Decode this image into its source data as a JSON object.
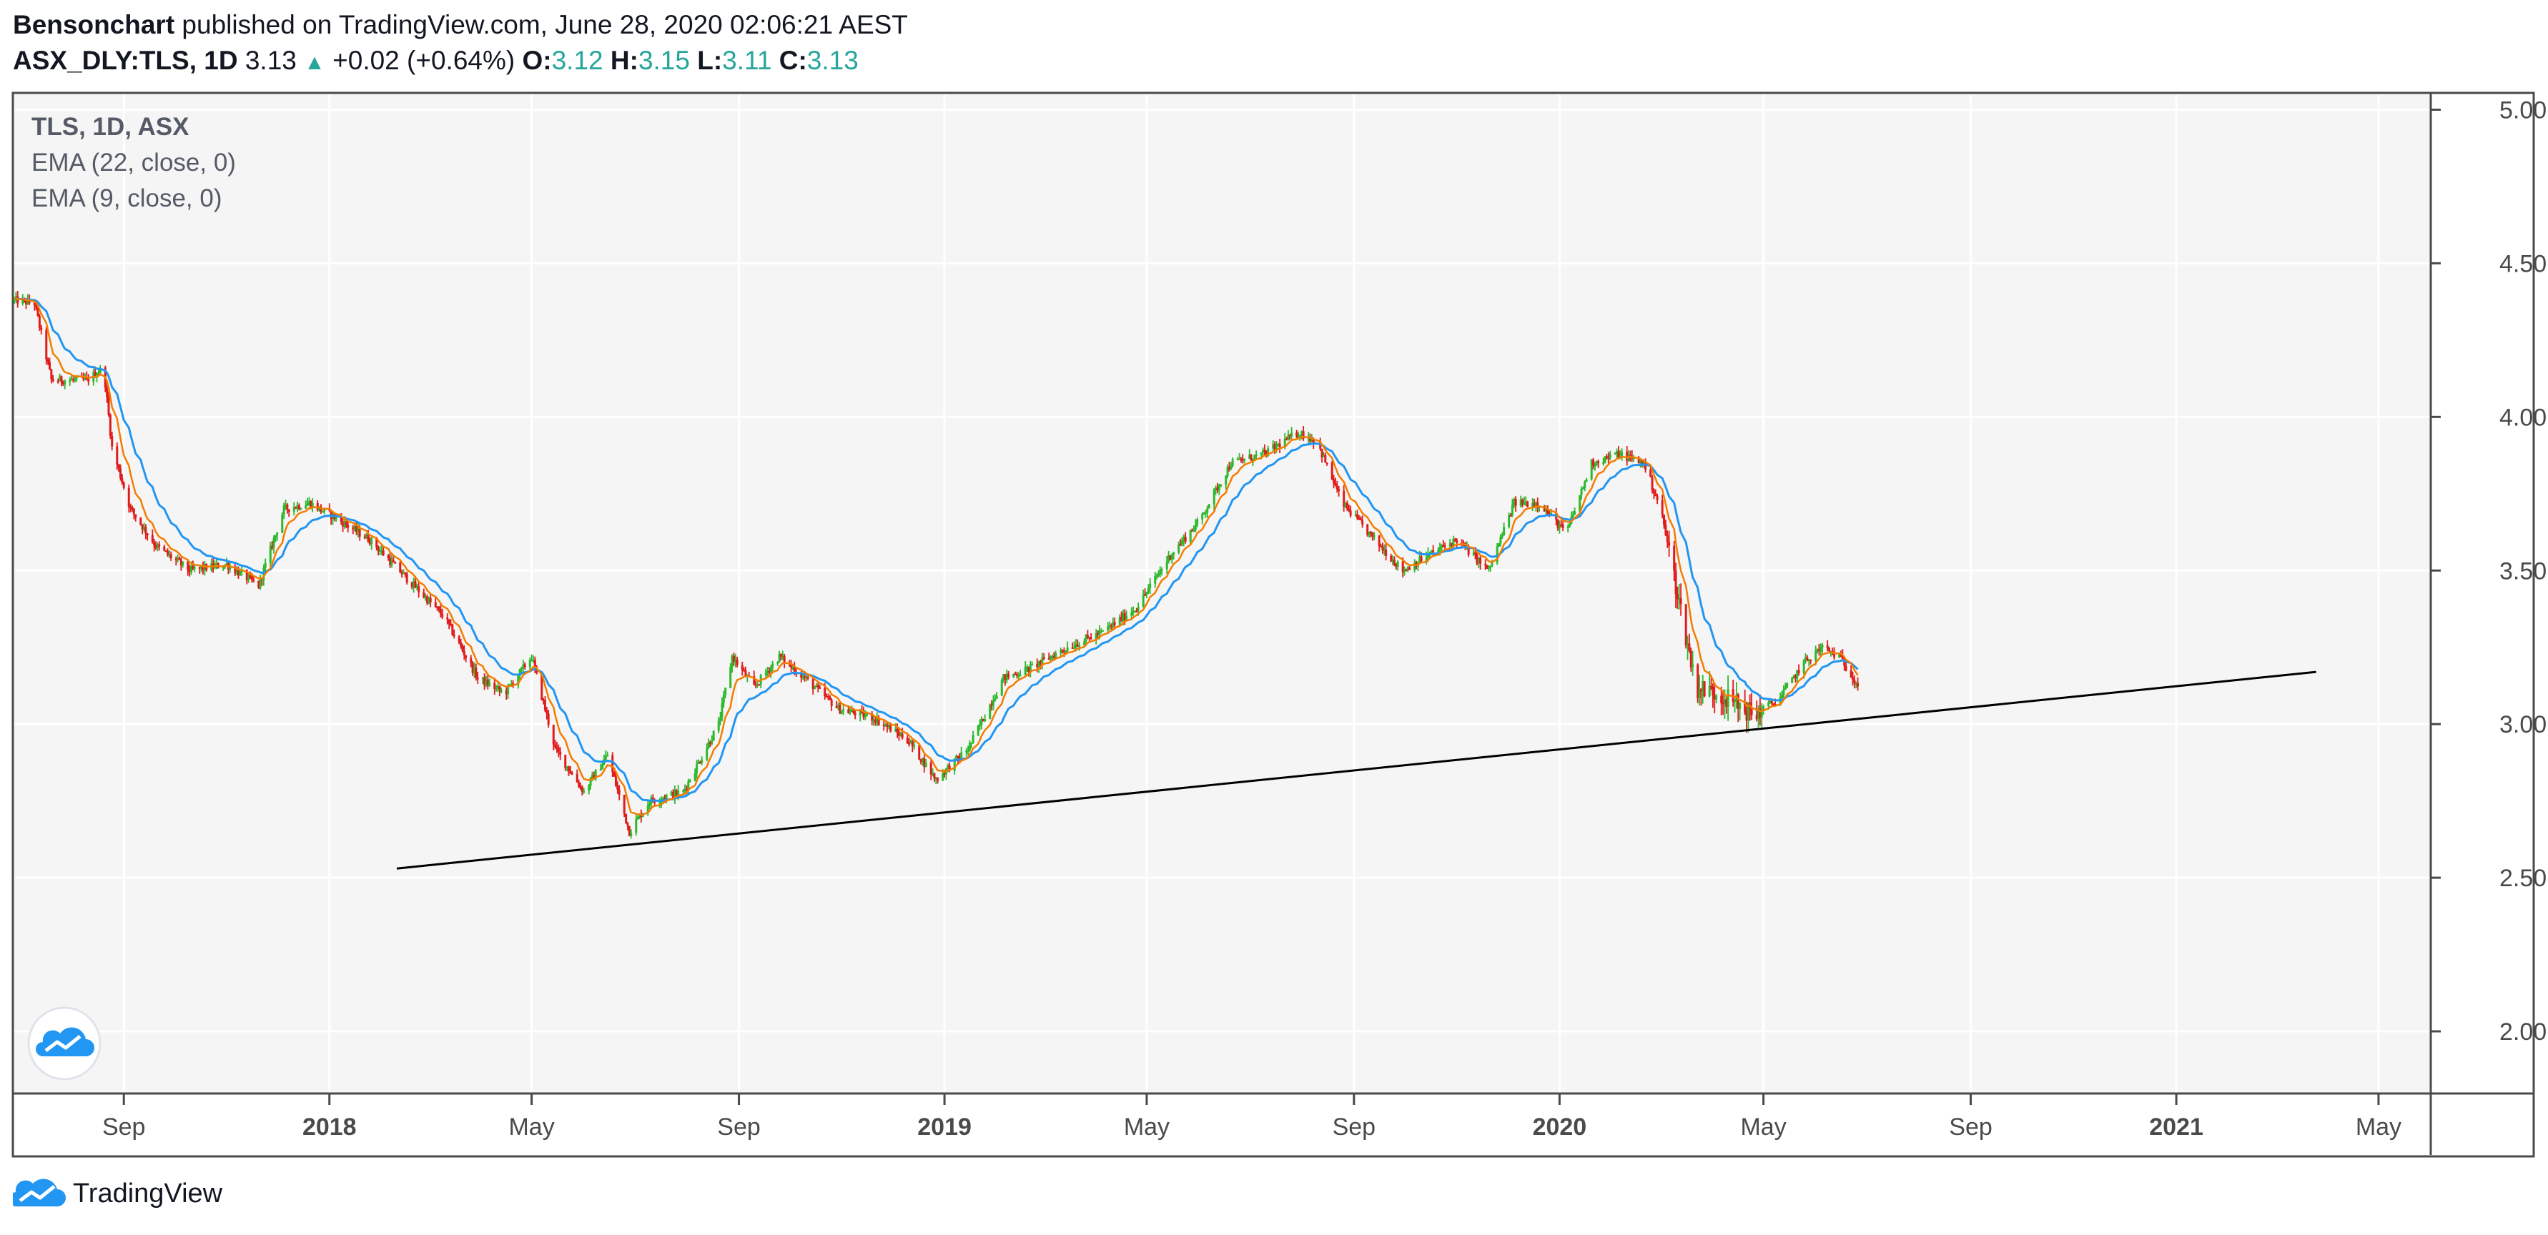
{
  "header": {
    "author": "Bensonchart",
    "published_text": " published on TradingView.com, June 28, 2020 02:06:21 AEST",
    "symbol": "ASX_DLY:TLS, 1D",
    "last": "3.13",
    "arrow": "▲",
    "change": "+0.02 (+0.64%)",
    "o_label": "O:",
    "o_value": "3.12",
    "h_label": "H:",
    "h_value": "3.15",
    "l_label": "L:",
    "l_value": "3.11",
    "c_label": "C:",
    "c_value": "3.13"
  },
  "legend": {
    "symbol": "TLS, 1D, ASX",
    "ema1": "EMA (22, close, 0)",
    "ema2": "EMA (9, close, 0)"
  },
  "footer": {
    "brand": "TradingView"
  },
  "colors": {
    "up": "#2db82d",
    "down": "#e01b1b",
    "ema22": "#2196f3",
    "ema9": "#f57c00",
    "trendline": "#000000",
    "background": "#f5f5f5",
    "grid": "#ffffff",
    "teal": "#26a69a"
  },
  "icons": {
    "logo_badge": "tradingview-cloud-icon",
    "footer_logo": "tradingview-cloud-icon"
  },
  "chart_data": {
    "type": "candlestick",
    "title": "TLS, 1D, ASX",
    "y_axis_side": "right",
    "ylim": [
      1.8,
      5.05
    ],
    "y_ticks": [
      "5.00",
      "4.50",
      "4.00",
      "3.50",
      "3.00",
      "2.50",
      "2.00"
    ],
    "x_range": [
      "2017-06-28",
      "2021-06-01"
    ],
    "x_ticks": [
      {
        "date": "2017-09-01",
        "label": "Sep",
        "bold": false
      },
      {
        "date": "2018-01-01",
        "label": "2018",
        "bold": true
      },
      {
        "date": "2018-05-01",
        "label": "May",
        "bold": false
      },
      {
        "date": "2018-09-01",
        "label": "Sep",
        "bold": false
      },
      {
        "date": "2019-01-01",
        "label": "2019",
        "bold": true
      },
      {
        "date": "2019-05-01",
        "label": "May",
        "bold": false
      },
      {
        "date": "2019-09-01",
        "label": "Sep",
        "bold": false
      },
      {
        "date": "2020-01-01",
        "label": "2020",
        "bold": true
      },
      {
        "date": "2020-05-01",
        "label": "May",
        "bold": false
      },
      {
        "date": "2020-09-01",
        "label": "Sep",
        "bold": false
      },
      {
        "date": "2021-01-01",
        "label": "2021",
        "bold": true
      },
      {
        "date": "2021-05-01",
        "label": "May",
        "bold": false
      }
    ],
    "price_path": [
      [
        "2017-06-28",
        4.38
      ],
      [
        "2017-07-10",
        4.37
      ],
      [
        "2017-07-20",
        4.12
      ],
      [
        "2017-08-10",
        4.12
      ],
      [
        "2017-08-20",
        4.16
      ],
      [
        "2017-08-25",
        3.9
      ],
      [
        "2017-09-05",
        3.7
      ],
      [
        "2017-09-20",
        3.58
      ],
      [
        "2017-10-10",
        3.5
      ],
      [
        "2017-11-01",
        3.52
      ],
      [
        "2017-11-20",
        3.45
      ],
      [
        "2017-12-05",
        3.7
      ],
      [
        "2017-12-20",
        3.72
      ],
      [
        "2018-01-05",
        3.67
      ],
      [
        "2018-01-25",
        3.6
      ],
      [
        "2018-02-15",
        3.48
      ],
      [
        "2018-03-10",
        3.35
      ],
      [
        "2018-03-30",
        3.15
      ],
      [
        "2018-04-15",
        3.1
      ],
      [
        "2018-05-01",
        3.22
      ],
      [
        "2018-05-15",
        2.92
      ],
      [
        "2018-06-01",
        2.78
      ],
      [
        "2018-06-15",
        2.9
      ],
      [
        "2018-06-28",
        2.65
      ],
      [
        "2018-07-10",
        2.75
      ],
      [
        "2018-07-30",
        2.78
      ],
      [
        "2018-08-20",
        3.0
      ],
      [
        "2018-08-28",
        3.22
      ],
      [
        "2018-09-10",
        3.12
      ],
      [
        "2018-09-25",
        3.22
      ],
      [
        "2018-10-10",
        3.15
      ],
      [
        "2018-10-30",
        3.05
      ],
      [
        "2018-11-20",
        3.02
      ],
      [
        "2018-12-10",
        2.95
      ],
      [
        "2018-12-27",
        2.82
      ],
      [
        "2019-01-15",
        2.92
      ],
      [
        "2019-02-05",
        3.15
      ],
      [
        "2019-02-20",
        3.18
      ],
      [
        "2019-03-15",
        3.25
      ],
      [
        "2019-04-05",
        3.3
      ],
      [
        "2019-04-25",
        3.38
      ],
      [
        "2019-05-15",
        3.55
      ],
      [
        "2019-06-01",
        3.66
      ],
      [
        "2019-06-20",
        3.85
      ],
      [
        "2019-07-10",
        3.88
      ],
      [
        "2019-07-30",
        3.95
      ],
      [
        "2019-08-10",
        3.92
      ],
      [
        "2019-08-25",
        3.72
      ],
      [
        "2019-09-10",
        3.62
      ],
      [
        "2019-09-30",
        3.5
      ],
      [
        "2019-10-15",
        3.55
      ],
      [
        "2019-11-01",
        3.6
      ],
      [
        "2019-11-20",
        3.5
      ],
      [
        "2019-12-05",
        3.72
      ],
      [
        "2019-12-20",
        3.72
      ],
      [
        "2020-01-05",
        3.62
      ],
      [
        "2020-01-20",
        3.85
      ],
      [
        "2020-02-05",
        3.88
      ],
      [
        "2020-02-20",
        3.85
      ],
      [
        "2020-03-01",
        3.7
      ],
      [
        "2020-03-12",
        3.4
      ],
      [
        "2020-03-22",
        3.12
      ],
      [
        "2020-04-05",
        3.1
      ],
      [
        "2020-04-25",
        3.03
      ],
      [
        "2020-05-10",
        3.08
      ],
      [
        "2020-05-25",
        3.2
      ],
      [
        "2020-06-05",
        3.25
      ],
      [
        "2020-06-15",
        3.22
      ],
      [
        "2020-06-26",
        3.13
      ]
    ],
    "series": [
      {
        "name": "EMA (22, close, 0)",
        "color": "#2196f3"
      },
      {
        "name": "EMA (9, close, 0)",
        "color": "#f57c00"
      }
    ],
    "trendline": {
      "from": [
        "2018-02-10",
        2.53
      ],
      "to": [
        "2021-03-25",
        3.17
      ]
    },
    "grid": true,
    "legend_placement": "top-left"
  }
}
